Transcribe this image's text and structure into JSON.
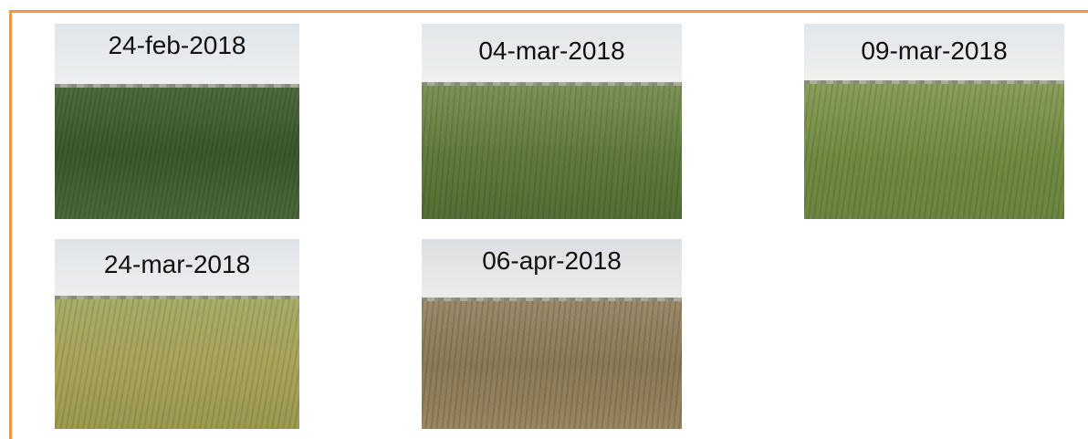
{
  "photos": [
    {
      "label": "24-feb-2018"
    },
    {
      "label": "04-mar-2018"
    },
    {
      "label": "09-mar-2018"
    },
    {
      "label": "24-mar-2018"
    },
    {
      "label": "06-apr-2018"
    }
  ]
}
